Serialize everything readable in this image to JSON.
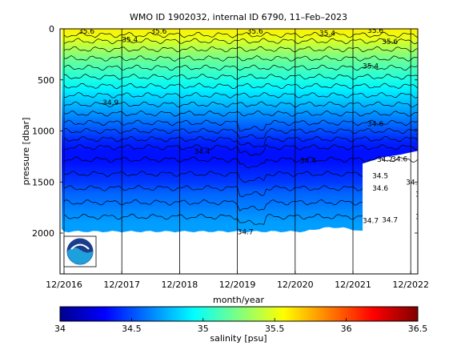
{
  "chart_data": {
    "type": "heatmap",
    "title": "WMO ID 1902032, internal ID 6790, 11–Feb–2023",
    "xlabel": "month/year",
    "ylabel": "pressure [dbar]",
    "x_ticks": [
      "12/2016",
      "12/2017",
      "12/2018",
      "12/2019",
      "12/2020",
      "12/2021",
      "12/2022"
    ],
    "y_ticks": [
      0,
      500,
      1000,
      1500,
      2000
    ],
    "ylim": [
      2400,
      0
    ],
    "y_reversed": true,
    "grid": "vertical lines at year ticks",
    "colorbar": {
      "label": "salinity [psu]",
      "min": 34,
      "max": 36.5,
      "ticks": [
        "34",
        "34.5",
        "35",
        "35.5",
        "36",
        "36.5"
      ],
      "colormap": "jet"
    },
    "salinity_profile": {
      "pressure": [
        0,
        100,
        200,
        300,
        400,
        500,
        600,
        700,
        800,
        900,
        1000,
        1100,
        1200,
        1300,
        1400,
        1500,
        1600,
        1700,
        1800,
        1900,
        2000
      ],
      "salinity": [
        35.6,
        35.5,
        35.35,
        35.2,
        35.1,
        35.0,
        34.9,
        34.8,
        34.7,
        34.6,
        34.5,
        34.4,
        34.35,
        34.35,
        34.4,
        34.45,
        34.55,
        34.6,
        34.65,
        34.7,
        34.7
      ]
    },
    "contour_labels": [
      {
        "text": "35.6",
        "month": 3,
        "p": 25
      },
      {
        "text": "35.6",
        "month": 18,
        "p": 25
      },
      {
        "text": "35.6",
        "month": 38,
        "p": 25
      },
      {
        "text": "35.6",
        "month": 63,
        "p": 15
      },
      {
        "text": "35.4",
        "month": 12,
        "p": 105
      },
      {
        "text": "35.4",
        "month": 53,
        "p": 45
      },
      {
        "text": "35.6",
        "month": 66,
        "p": 125
      },
      {
        "text": "35.4",
        "month": 62,
        "p": 365
      },
      {
        "text": "34.9",
        "month": 8,
        "p": 720
      },
      {
        "text": "34.6",
        "month": 63,
        "p": 930
      },
      {
        "text": "34.4",
        "month": 27,
        "p": 1200
      },
      {
        "text": "34.4",
        "month": 49,
        "p": 1290
      },
      {
        "text": "34.5",
        "month": 64,
        "p": 1440
      },
      {
        "text": "34.6",
        "month": 64,
        "p": 1560
      },
      {
        "text": "34.7",
        "month": 71,
        "p": 1500
      },
      {
        "text": "34.7",
        "month": 73,
        "p": 1620
      },
      {
        "text": "34.7",
        "month": 73,
        "p": 1840
      },
      {
        "text": "34.7",
        "month": 62,
        "p": 1880
      },
      {
        "text": "34.7",
        "month": 66,
        "p": 1870
      },
      {
        "text": "34.7",
        "month": 36,
        "p": 1990
      },
      {
        "text": "34.6",
        "month": 68,
        "p": 1275
      },
      {
        "text": "34.4",
        "month": 73,
        "p": 1050
      },
      {
        "text": "34.7",
        "month": 65,
        "p": 1280
      }
    ]
  }
}
